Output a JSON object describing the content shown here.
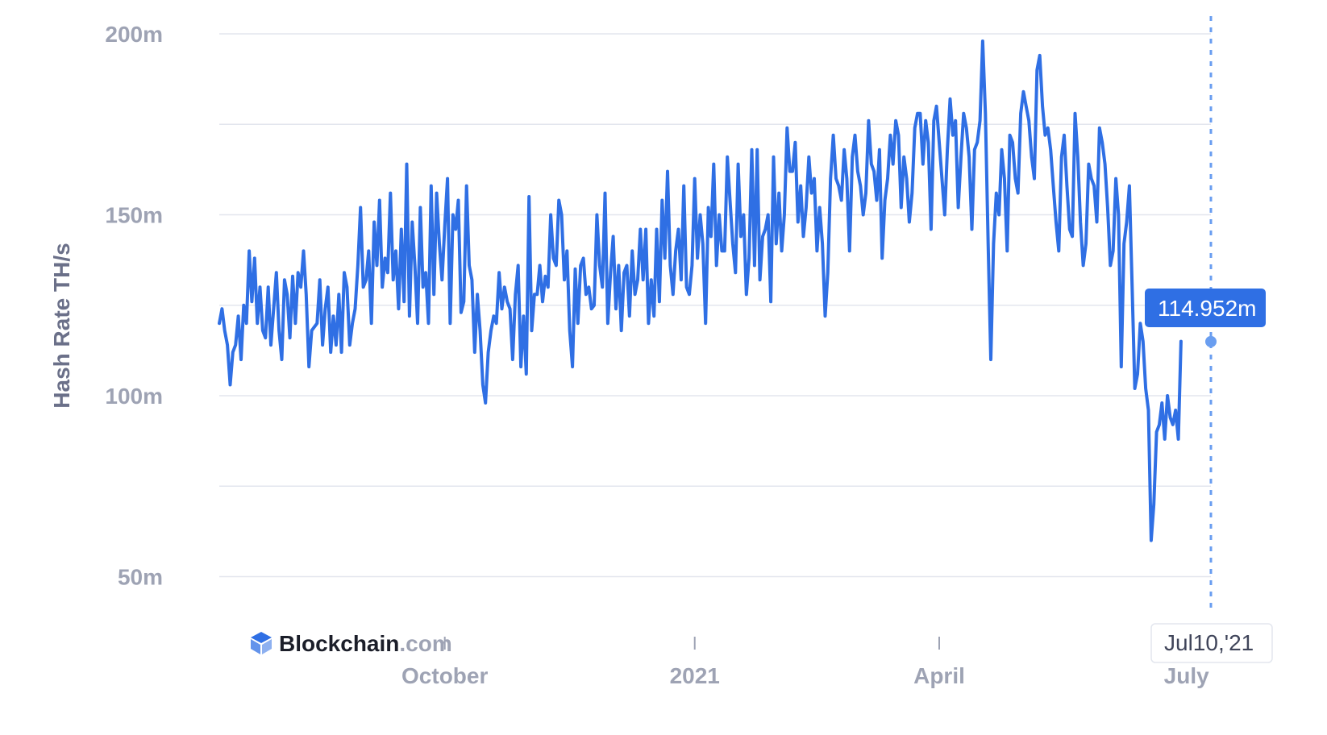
{
  "chart_data": {
    "type": "line",
    "ylabel": "Hash Rate TH/s",
    "ylim": [
      40,
      200
    ],
    "y_ticks": [
      {
        "value": 200,
        "label": "200m"
      },
      {
        "value": 150,
        "label": "150m"
      },
      {
        "value": 100,
        "label": "100m"
      },
      {
        "value": 50,
        "label": "50m"
      }
    ],
    "x_start": "2020-07-10",
    "x_end": "2021-07-10",
    "x_ticks": [
      {
        "date": "2020-10-01",
        "label": "October"
      },
      {
        "date": "2021-01-01",
        "label": "2021"
      },
      {
        "date": "2021-04-01",
        "label": "April"
      },
      {
        "date": "2021-07-01",
        "label": "July"
      }
    ],
    "grid": true,
    "line_color": "#2f6fe4",
    "series": [
      {
        "values": [
          [
            120,
            124,
            118,
            114,
            103,
            112,
            114,
            122,
            110,
            125,
            120,
            140,
            126,
            138,
            120,
            130,
            118,
            116,
            130,
            114,
            124,
            134,
            118,
            110,
            132,
            128,
            116,
            133,
            120,
            134,
            130,
            140,
            128,
            108,
            118,
            119,
            120,
            132,
            114,
            124,
            130,
            112,
            122,
            114,
            128,
            112,
            134,
            130,
            114,
            120,
            124,
            136,
            152,
            130,
            132,
            140,
            120,
            148,
            136,
            154,
            130,
            138,
            134,
            156,
            132,
            140,
            124,
            146,
            126,
            164,
            122,
            148,
            136,
            120,
            152,
            130,
            134,
            120,
            158,
            128,
            156,
            142,
            132,
            147,
            160,
            120,
            150,
            146,
            154,
            123,
            126,
            158,
            136,
            132,
            112,
            128,
            118,
            103,
            98,
            112,
            118,
            122,
            120,
            134,
            124,
            130,
            126,
            124,
            110,
            128,
            136,
            108,
            122,
            106,
            155,
            118,
            128,
            128,
            136,
            126,
            133,
            130,
            150,
            138
          ],
          [
            136,
            154,
            150,
            132,
            140,
            118,
            108,
            135,
            120,
            136,
            138,
            128,
            130,
            124,
            125,
            150,
            136,
            130,
            156,
            120,
            134,
            144,
            124,
            136,
            118,
            134,
            136,
            122,
            140,
            128,
            132,
            146,
            132,
            146,
            120,
            132,
            122,
            146,
            126,
            154,
            138,
            162,
            136,
            128,
            140,
            146,
            132,
            158,
            130,
            128,
            136,
            160,
            138,
            150,
            142,
            120,
            152,
            144,
            164,
            136,
            150,
            140,
            140,
            166,
            154,
            142,
            134,
            164,
            144,
            150,
            128,
            138,
            168,
            136,
            168,
            132,
            144,
            146,
            150,
            126,
            166,
            142,
            156,
            140,
            150,
            174,
            162,
            162,
            170,
            148,
            158,
            144,
            152,
            166,
            156,
            160,
            140,
            152,
            142,
            122
          ],
          [
            134,
            160,
            172,
            160,
            158,
            154,
            168,
            160,
            140,
            166,
            172,
            162,
            158,
            150,
            156,
            176,
            164,
            162,
            154,
            168,
            138,
            154,
            160,
            172,
            164,
            176,
            172,
            152,
            166,
            160,
            148,
            156,
            174,
            178,
            178,
            164,
            176,
            170,
            146,
            176,
            180,
            170,
            160,
            150,
            168,
            182,
            172,
            176,
            152,
            166,
            178,
            174,
            166,
            146,
            168,
            170,
            176,
            198,
            178,
            142,
            110,
            142,
            156,
            150,
            168,
            160,
            140,
            172,
            170,
            160,
            156,
            178,
            184,
            180,
            176,
            166,
            160,
            190,
            194,
            180,
            172,
            174,
            168,
            158,
            148,
            140,
            166,
            172,
            158,
            146,
            144,
            178,
            166,
            148,
            136,
            142,
            164,
            160,
            158,
            148,
            174,
            170,
            164,
            152,
            136,
            140,
            160,
            150,
            108,
            142,
            148,
            158,
            130,
            102,
            106,
            120,
            115,
            102,
            96,
            60,
            70,
            90,
            92,
            98,
            88,
            100,
            94,
            92,
            96,
            88,
            115
          ]
        ]
      }
    ],
    "current": {
      "value": 114.952,
      "value_label": "114.952m",
      "date_label": "Jul10,'21"
    }
  },
  "brand": {
    "name": "Blockchain",
    "suffix": ".com",
    "logo_color": "#2f6fe4"
  }
}
